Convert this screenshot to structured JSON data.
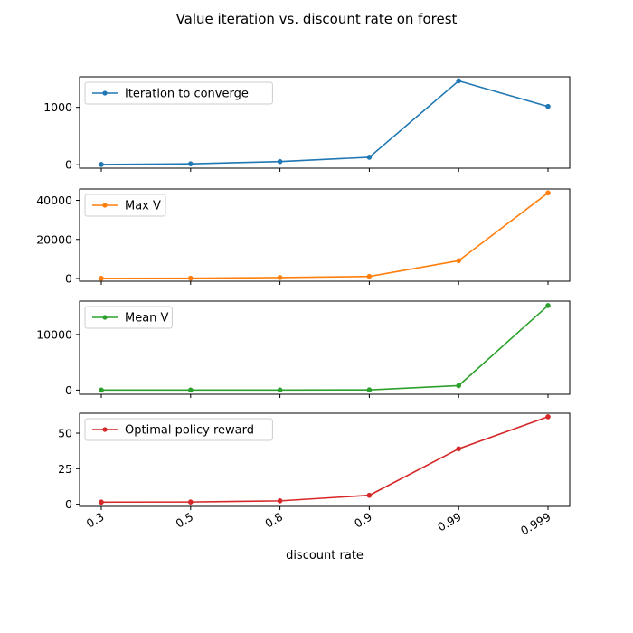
{
  "figure": {
    "title": "Value iteration vs. discount rate on forest"
  },
  "chart_data": [
    {
      "type": "line",
      "title": "",
      "categories": [
        "0.3",
        "0.5",
        "0.8",
        "0.9",
        "0.99",
        "0.999"
      ],
      "xlabel": "",
      "ylabel": "",
      "ylim": [
        -60,
        1530
      ],
      "yticks": [
        0,
        1000
      ],
      "yticklabels": [
        "0",
        "1000"
      ],
      "grid": false,
      "legend_position": "upper-left",
      "series": [
        {
          "name": "Iteration to converge",
          "color": "#1f77b4",
          "values": [
            4,
            16,
            55,
            130,
            1460,
            1015
          ]
        }
      ]
    },
    {
      "type": "line",
      "title": "",
      "categories": [
        "0.3",
        "0.5",
        "0.8",
        "0.9",
        "0.99",
        "0.999"
      ],
      "xlabel": "",
      "ylabel": "",
      "ylim": [
        -1400,
        45800
      ],
      "yticks": [
        0,
        20000,
        40000
      ],
      "yticklabels": [
        "0",
        "20000",
        "40000"
      ],
      "grid": false,
      "legend_position": "upper-left",
      "series": [
        {
          "name": "Max V",
          "color": "#ff7f0e",
          "values": [
            80,
            150,
            470,
            1050,
            9100,
            43800
          ]
        }
      ]
    },
    {
      "type": "line",
      "title": "",
      "categories": [
        "0.3",
        "0.5",
        "0.8",
        "0.9",
        "0.99",
        "0.999"
      ],
      "xlabel": "",
      "ylabel": "",
      "ylim": [
        -750,
        16000
      ],
      "yticks": [
        0,
        10000
      ],
      "yticklabels": [
        "0",
        "10000"
      ],
      "grid": false,
      "legend_position": "upper-left",
      "series": [
        {
          "name": "Mean V",
          "color": "#2ca02c",
          "values": [
            5,
            10,
            20,
            40,
            800,
            15200
          ]
        }
      ]
    },
    {
      "type": "line",
      "title": "",
      "categories": [
        "0.3",
        "0.5",
        "0.8",
        "0.9",
        "0.99",
        "0.999"
      ],
      "xlabel": "discount rate",
      "ylabel": "",
      "ylim": [
        -1.5,
        64
      ],
      "yticks": [
        0,
        25,
        50
      ],
      "yticklabels": [
        "0",
        "25",
        "50"
      ],
      "grid": false,
      "legend_position": "upper-left",
      "series": [
        {
          "name": "Optimal policy reward",
          "color": "#d62728",
          "values": [
            1.5,
            1.6,
            2.4,
            6.3,
            39,
            61.5
          ]
        }
      ]
    }
  ]
}
